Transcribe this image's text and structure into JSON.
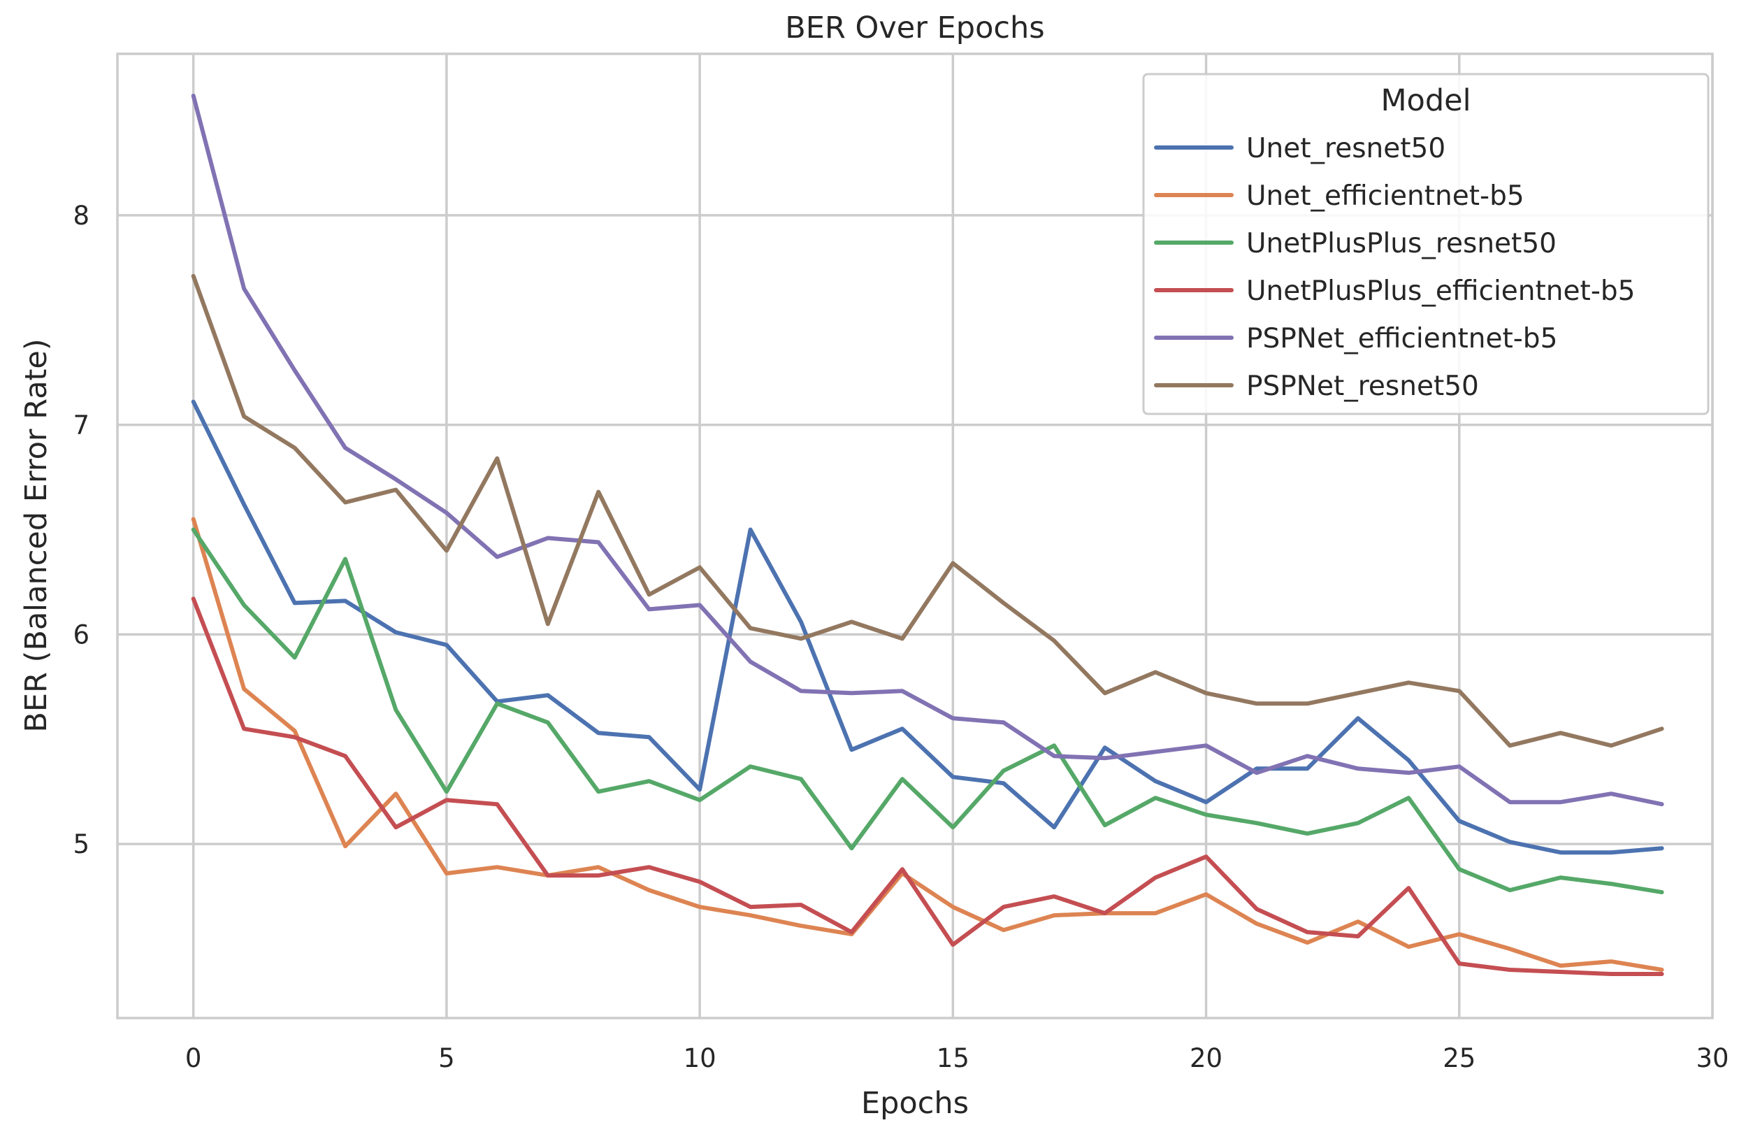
{
  "chart_data": {
    "type": "line",
    "title": "BER Over Epochs",
    "xlabel": "Epochs",
    "ylabel": "BER (Balanced Error Rate)",
    "xlim": [
      -1.5,
      30.0
    ],
    "ylim": [
      4.17,
      8.77
    ],
    "xticks": [
      0,
      5,
      10,
      15,
      20,
      25,
      30
    ],
    "yticks": [
      5,
      6,
      7,
      8
    ],
    "xtick_labels": [
      "0",
      "5",
      "10",
      "15",
      "20",
      "25",
      "30"
    ],
    "ytick_labels": [
      "5",
      "6",
      "7",
      "8"
    ],
    "grid": true,
    "legend_title": "Model",
    "legend_position": "top-right",
    "x": [
      0,
      1,
      2,
      3,
      4,
      5,
      6,
      7,
      8,
      9,
      10,
      11,
      12,
      13,
      14,
      15,
      16,
      17,
      18,
      19,
      20,
      21,
      22,
      23,
      24,
      25,
      26,
      27,
      28,
      29
    ],
    "series": [
      {
        "name": "Unet_resnet50",
        "color": "#4c72b0",
        "values": [
          7.11,
          6.62,
          6.15,
          6.16,
          6.01,
          5.95,
          5.68,
          5.71,
          5.53,
          5.51,
          5.26,
          6.5,
          6.06,
          5.45,
          5.55,
          5.32,
          5.29,
          5.08,
          5.46,
          5.3,
          5.2,
          5.36,
          5.36,
          5.6,
          5.4,
          5.11,
          5.01,
          4.96,
          4.96,
          4.98
        ]
      },
      {
        "name": "Unet_efficientnet-b5",
        "color": "#dd8452",
        "values": [
          6.55,
          5.74,
          5.54,
          4.99,
          5.24,
          4.86,
          4.89,
          4.85,
          4.89,
          4.78,
          4.7,
          4.66,
          4.61,
          4.57,
          4.86,
          4.7,
          4.59,
          4.66,
          4.67,
          4.67,
          4.76,
          4.62,
          4.53,
          4.63,
          4.51,
          4.57,
          4.5,
          4.42,
          4.44,
          4.4
        ]
      },
      {
        "name": "UnetPlusPlus_resnet50",
        "color": "#55a868",
        "values": [
          6.5,
          6.14,
          5.89,
          6.36,
          5.64,
          5.25,
          5.67,
          5.58,
          5.25,
          5.3,
          5.21,
          5.37,
          5.31,
          4.98,
          5.31,
          5.08,
          5.35,
          5.47,
          5.09,
          5.22,
          5.14,
          5.1,
          5.05,
          5.1,
          5.22,
          4.88,
          4.78,
          4.84,
          4.81,
          4.77
        ]
      },
      {
        "name": "UnetPlusPlus_efficientnet-b5",
        "color": "#c44e52",
        "values": [
          6.17,
          5.55,
          5.51,
          5.42,
          5.08,
          5.21,
          5.19,
          4.85,
          4.85,
          4.89,
          4.82,
          4.7,
          4.71,
          4.58,
          4.88,
          4.52,
          4.7,
          4.75,
          4.67,
          4.84,
          4.94,
          4.69,
          4.58,
          4.56,
          4.79,
          4.43,
          4.4,
          4.39,
          4.38,
          4.38
        ]
      },
      {
        "name": "PSPNet_efficientnet-b5",
        "color": "#8172b3",
        "values": [
          8.57,
          7.65,
          7.26,
          6.89,
          6.74,
          6.58,
          6.37,
          6.46,
          6.44,
          6.12,
          6.14,
          5.87,
          5.73,
          5.72,
          5.73,
          5.6,
          5.58,
          5.42,
          5.41,
          5.44,
          5.47,
          5.34,
          5.42,
          5.36,
          5.34,
          5.37,
          5.2,
          5.2,
          5.24,
          5.19
        ]
      },
      {
        "name": "PSPNet_resnet50",
        "color": "#937860",
        "values": [
          7.71,
          7.04,
          6.89,
          6.63,
          6.69,
          6.4,
          6.84,
          6.05,
          6.68,
          6.19,
          6.32,
          6.03,
          5.98,
          6.06,
          5.98,
          6.34,
          6.15,
          5.97,
          5.72,
          5.82,
          5.72,
          5.67,
          5.67,
          5.72,
          5.77,
          5.73,
          5.47,
          5.53,
          5.47,
          5.55
        ]
      }
    ]
  }
}
